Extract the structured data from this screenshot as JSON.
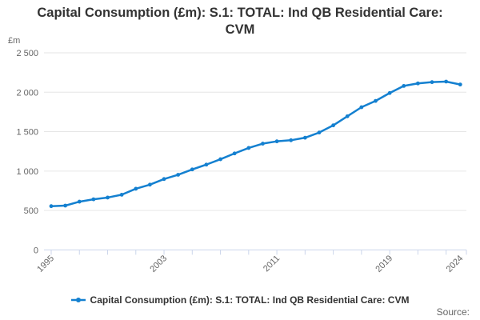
{
  "header": {
    "title": "Capital Consumption (£m): S.1: TOTAL: Ind QB Residential Care: CVM"
  },
  "legend": {
    "series_label": "Capital Consumption (£m): S.1: TOTAL: Ind QB Residential Care: CVM"
  },
  "footer": {
    "source_label": "Source:"
  },
  "colors": {
    "line": "#1480d0",
    "grid": "#e6e6e6",
    "axis": "#ccd6eb",
    "muted_text": "#666666",
    "title_text": "#333333"
  },
  "chart_data": {
    "type": "line",
    "title": "Capital Consumption (£m): S.1: TOTAL: Ind QB Residential Care: CVM",
    "unit_label": "£m",
    "ylabel": "£m",
    "xlabel": "",
    "grid": "horizontal",
    "legend_position": "bottom",
    "ylim": [
      0,
      2500
    ],
    "yticks": [
      0,
      500,
      1000,
      1500,
      2000,
      2500
    ],
    "ytick_labels": [
      "0",
      "500",
      "1 000",
      "1 500",
      "2 000",
      "2 500"
    ],
    "xtick_years": [
      1995,
      1997,
      1999,
      2001,
      2003,
      2005,
      2007,
      2009,
      2011,
      2013,
      2015,
      2017,
      2019,
      2021,
      2023
    ],
    "xlabel_years": [
      1995,
      2003,
      2011,
      2019,
      2024
    ],
    "x": [
      1995,
      1996,
      1997,
      1998,
      1999,
      2000,
      2001,
      2002,
      2003,
      2004,
      2005,
      2006,
      2007,
      2008,
      2009,
      2010,
      2011,
      2012,
      2013,
      2014,
      2015,
      2016,
      2017,
      2018,
      2019,
      2020,
      2021,
      2022,
      2023,
      2024
    ],
    "series": [
      {
        "name": "Capital Consumption (£m): S.1: TOTAL: Ind QB Residential Care: CVM",
        "values": [
          555,
          562,
          612,
          642,
          664,
          700,
          776,
          828,
          899,
          953,
          1021,
          1082,
          1150,
          1224,
          1293,
          1348,
          1377,
          1391,
          1423,
          1489,
          1580,
          1695,
          1810,
          1890,
          1990,
          2080,
          2112,
          2128,
          2135,
          2098
        ]
      }
    ]
  }
}
